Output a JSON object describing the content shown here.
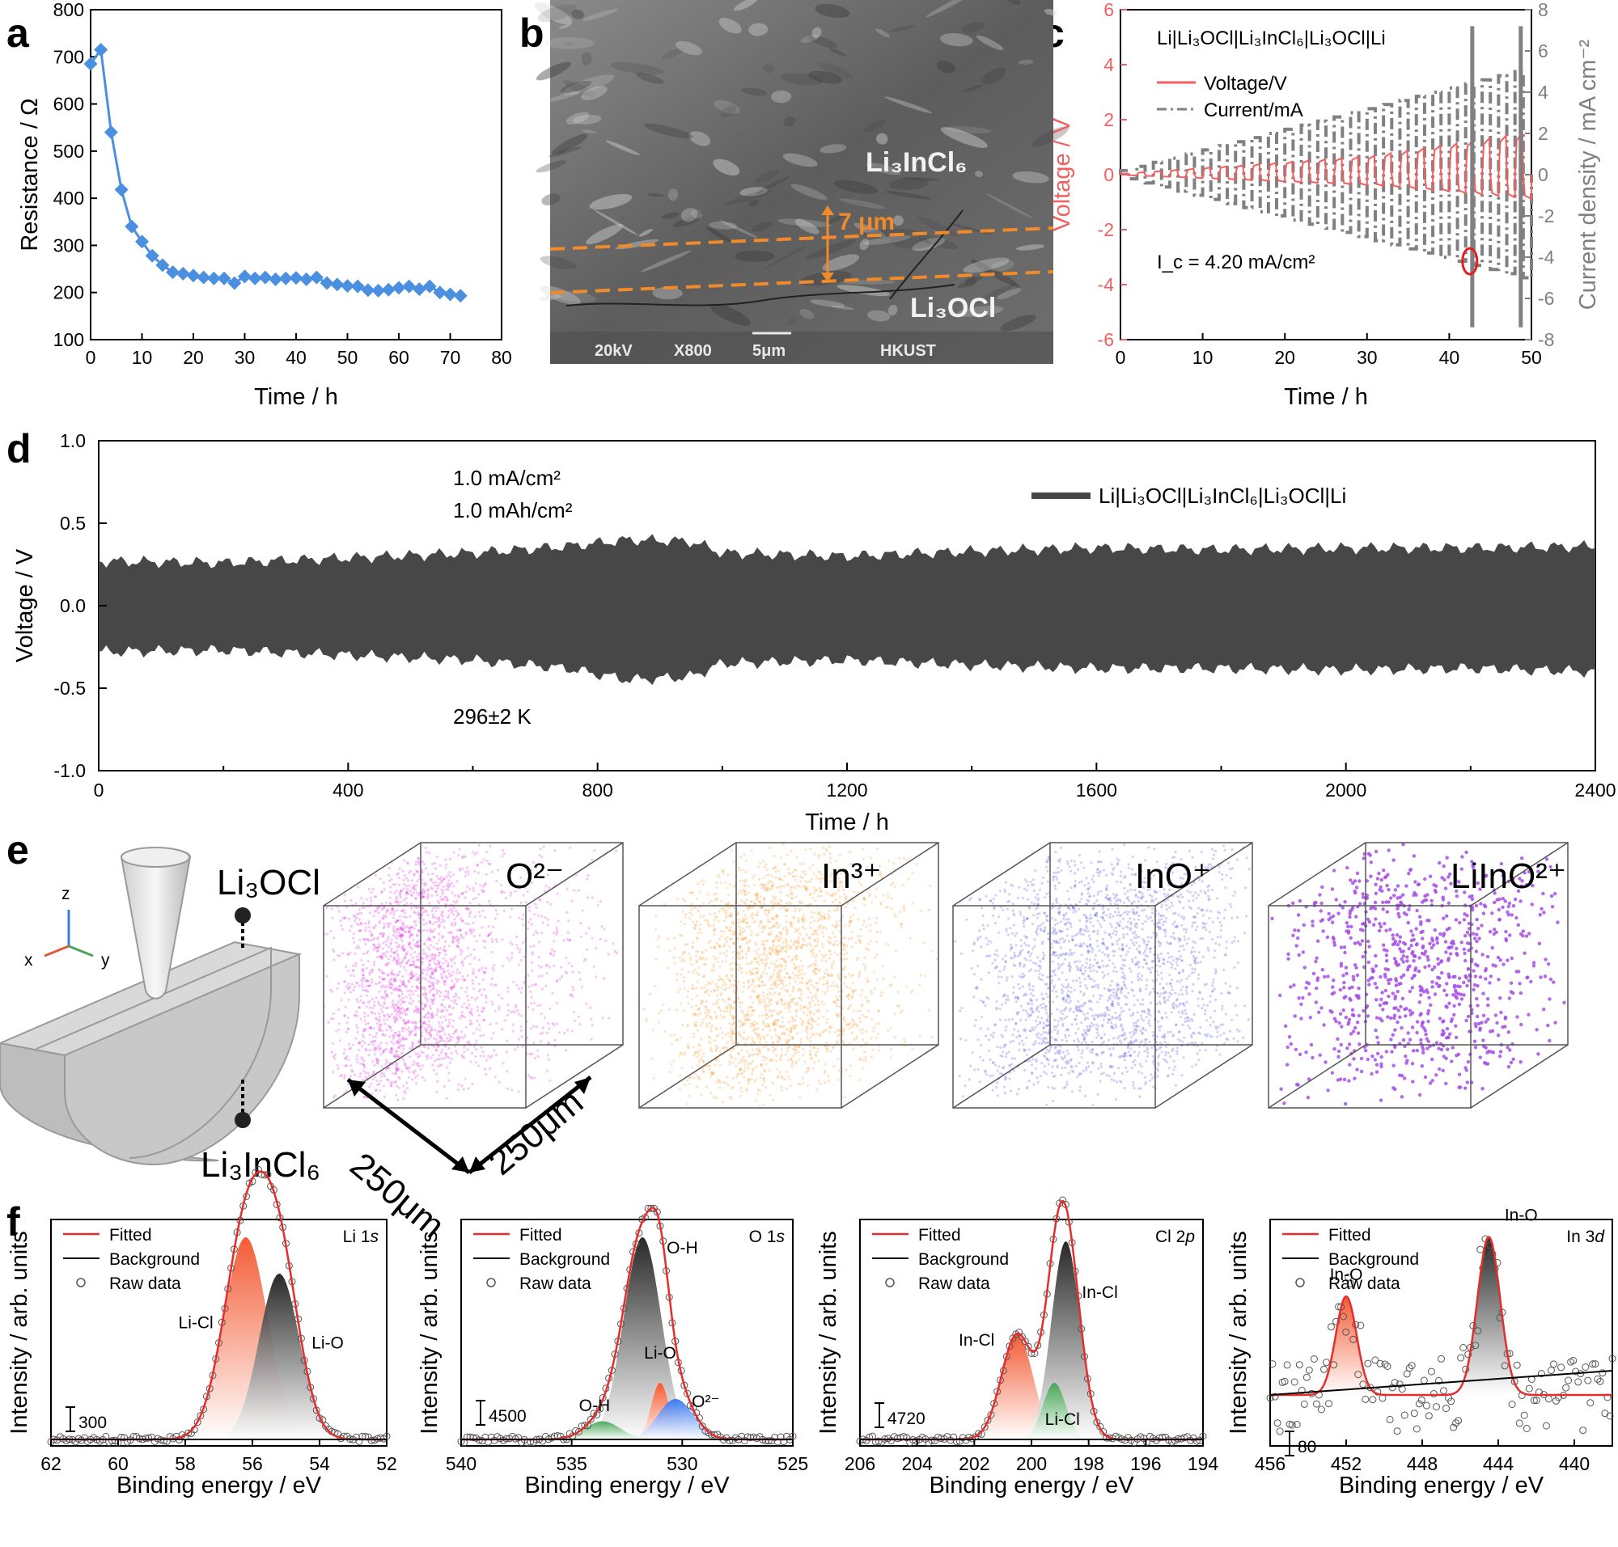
{
  "figure": {
    "panels": [
      "a",
      "b",
      "c",
      "d",
      "e",
      "f"
    ],
    "colors": {
      "blue": "#4a8fe0",
      "red": "#f25f5f",
      "gray": "#808080",
      "dark": "#474747",
      "green": "#4aa35a",
      "orange": "#f57a45"
    }
  },
  "panel_b": {
    "title_top": "Li₃InCl₆",
    "title_bottom": "Li₃OCl",
    "thickness": "7 μm",
    "footer": [
      "20kV",
      "X800",
      "5μm",
      "HKUST"
    ]
  },
  "panel_e": {
    "axis": [
      "z",
      "x",
      "y"
    ],
    "sample_top": "Li₃OCl",
    "sample_bottom": "Li₃InCl₆",
    "dims": [
      "250μm",
      "250μm"
    ],
    "cubes": [
      {
        "label": "O²⁻",
        "color": "#e020e0"
      },
      {
        "label": "In³⁺",
        "color": "#f7931e"
      },
      {
        "label": "InO⁺",
        "color": "#4b4be0"
      },
      {
        "label": "LiInO²⁺",
        "color": "#a64ce6"
      }
    ]
  },
  "chart_data": [
    {
      "id": "a",
      "type": "line",
      "title": "",
      "xlabel": "Time / h",
      "ylabel": "Resistance / Ω",
      "xlim": [
        0,
        80
      ],
      "ylim": [
        100,
        800
      ],
      "xticks": [
        0,
        10,
        20,
        30,
        40,
        50,
        60,
        70,
        80
      ],
      "yticks": [
        100,
        200,
        300,
        400,
        500,
        600,
        700,
        800
      ],
      "series": [
        {
          "name": "Resistance",
          "color": "#4a8fe0",
          "x": [
            0,
            2,
            4,
            6,
            8,
            10,
            12,
            14,
            16,
            18,
            20,
            22,
            24,
            26,
            28,
            30,
            32,
            34,
            36,
            38,
            40,
            42,
            44,
            46,
            48,
            50,
            52,
            54,
            56,
            58,
            60,
            62,
            64,
            66,
            68,
            70,
            72
          ],
          "y": [
            685,
            715,
            540,
            418,
            340,
            308,
            278,
            258,
            243,
            240,
            236,
            232,
            230,
            230,
            220,
            234,
            230,
            232,
            228,
            230,
            231,
            228,
            232,
            220,
            217,
            214,
            213,
            205,
            204,
            206,
            210,
            213,
            207,
            213,
            200,
            196,
            193
          ]
        }
      ]
    },
    {
      "id": "c",
      "type": "line",
      "title": "Li|Li₃OCl|Li₃InCl₆|Li₃OCl|Li",
      "xlabel": "Time / h",
      "ylabel": "Voltage / V",
      "y2label": "Current density / mA cm⁻²",
      "xlim": [
        0,
        50
      ],
      "ylim": [
        -6,
        6
      ],
      "y2lim": [
        -8,
        8
      ],
      "xticks": [
        0,
        10,
        20,
        30,
        40,
        50
      ],
      "yticks": [
        -6,
        -4,
        -2,
        0,
        2,
        4,
        6
      ],
      "y2ticks": [
        -8,
        -6,
        -4,
        -2,
        0,
        2,
        4,
        6,
        8
      ],
      "legend": [
        "Voltage/V",
        "Current/mA"
      ],
      "annotation": "I_c = 4.20 mA/cm²",
      "critical_point": {
        "x": 42.5,
        "y2": -4.2
      },
      "current_step_per_cycle": 0.2,
      "cycle_hours": 2
    },
    {
      "id": "d",
      "type": "area",
      "title": "",
      "xlabel": "Time / h",
      "ylabel": "Voltage / V",
      "xlim": [
        0,
        2400
      ],
      "ylim": [
        -1.0,
        1.0
      ],
      "xticks": [
        0,
        400,
        800,
        1200,
        1600,
        2000,
        2400
      ],
      "yticks": [
        -1.0,
        -0.5,
        0.0,
        0.5,
        1.0
      ],
      "legend": [
        "Li|Li₃OCl|Li₃InCl₆|Li₃OCl|Li"
      ],
      "notes": [
        "1.0 mA/cm²",
        "1.0 mAh/cm²",
        "296±2 K"
      ],
      "envelope": {
        "x": [
          0,
          200,
          400,
          600,
          750,
          850,
          950,
          1000,
          1200,
          1400,
          1600,
          1800,
          2000,
          2200,
          2400
        ],
        "upper": [
          0.27,
          0.26,
          0.29,
          0.32,
          0.36,
          0.4,
          0.39,
          0.32,
          0.3,
          0.33,
          0.35,
          0.34,
          0.35,
          0.35,
          0.36
        ],
        "lower": [
          -0.28,
          -0.27,
          -0.3,
          -0.33,
          -0.38,
          -0.45,
          -0.43,
          -0.35,
          -0.33,
          -0.36,
          -0.38,
          -0.38,
          -0.39,
          -0.38,
          -0.4
        ]
      }
    },
    {
      "id": "f1",
      "type": "line",
      "label": "Li 1s",
      "xlabel": "Binding energy / eV",
      "ylabel": "Intensity / arb. units",
      "xlim": [
        62,
        52
      ],
      "xticks": [
        62,
        60,
        58,
        56,
        54,
        52
      ],
      "legend": [
        "Fitted",
        "Background",
        "Raw data"
      ],
      "scale": "300",
      "peaks": [
        {
          "name": "Li-Cl",
          "center": 56.2,
          "height": 1.0,
          "width": 0.65
        },
        {
          "name": "Li-O",
          "center": 55.2,
          "height": 0.82,
          "width": 0.6
        }
      ]
    },
    {
      "id": "f2",
      "type": "line",
      "label": "O 1s",
      "xlabel": "Binding energy / eV",
      "ylabel": "Intensity / arb. units",
      "xlim": [
        540,
        525
      ],
      "xticks": [
        540,
        535,
        530,
        525
      ],
      "legend": [
        "Fitted",
        "Background",
        "Raw data"
      ],
      "scale": "4500",
      "peaks": [
        {
          "name": "O-H",
          "center": 531.8,
          "height": 1.0,
          "width": 0.85
        },
        {
          "name": "Li-O",
          "center": 531.0,
          "height": 0.28,
          "width": 0.4
        },
        {
          "name": "O²⁻",
          "center": 530.3,
          "height": 0.2,
          "width": 0.8
        },
        {
          "name": "O-H",
          "center": 533.6,
          "height": 0.09,
          "width": 0.8
        }
      ]
    },
    {
      "id": "f3",
      "type": "line",
      "label": "Cl 2p",
      "xlabel": "Binding energy / eV",
      "ylabel": "Intensity / arb. units",
      "xlim": [
        206,
        194
      ],
      "xticks": [
        206,
        204,
        202,
        200,
        198,
        196,
        194
      ],
      "legend": [
        "Fitted",
        "Background",
        "Raw data"
      ],
      "scale": "4720",
      "peaks": [
        {
          "name": "In-Cl",
          "center": 200.5,
          "height": 0.52,
          "width": 0.55
        },
        {
          "name": "In-Cl",
          "center": 198.8,
          "height": 0.98,
          "width": 0.5
        },
        {
          "name": "Li-Cl",
          "center": 199.2,
          "height": 0.28,
          "width": 0.4
        }
      ]
    },
    {
      "id": "f4",
      "type": "line",
      "label": "In 3d",
      "xlabel": "Binding energy / eV",
      "ylabel": "Intensity / arb. units",
      "xlim": [
        456,
        438
      ],
      "xticks": [
        456,
        452,
        448,
        444,
        440
      ],
      "legend": [
        "Fitted",
        "Background",
        "Raw data"
      ],
      "scale": "80",
      "peaks": [
        {
          "name": "In-O",
          "center": 452.0,
          "height": 0.53,
          "width": 0.55
        },
        {
          "name": "In-O",
          "center": 444.5,
          "height": 0.85,
          "width": 0.6
        }
      ]
    }
  ],
  "text": {
    "f_labels": {
      "f1": {
        "core": "Li 1",
        "orb": "s",
        "p1": "Li-Cl",
        "p2": "Li-O"
      },
      "f2": {
        "core": "O 1",
        "orb": "s",
        "p1": "O-H",
        "p2": "Li-O",
        "p3": "O²⁻",
        "p4": "O-H"
      },
      "f3": {
        "core": "Cl 2",
        "orb": "p",
        "p1": "In-Cl",
        "p2": "In-Cl",
        "p3": "Li-Cl"
      },
      "f4": {
        "core": "In 3",
        "orb": "d",
        "p1": "In-O",
        "p2": "In-O"
      }
    }
  }
}
